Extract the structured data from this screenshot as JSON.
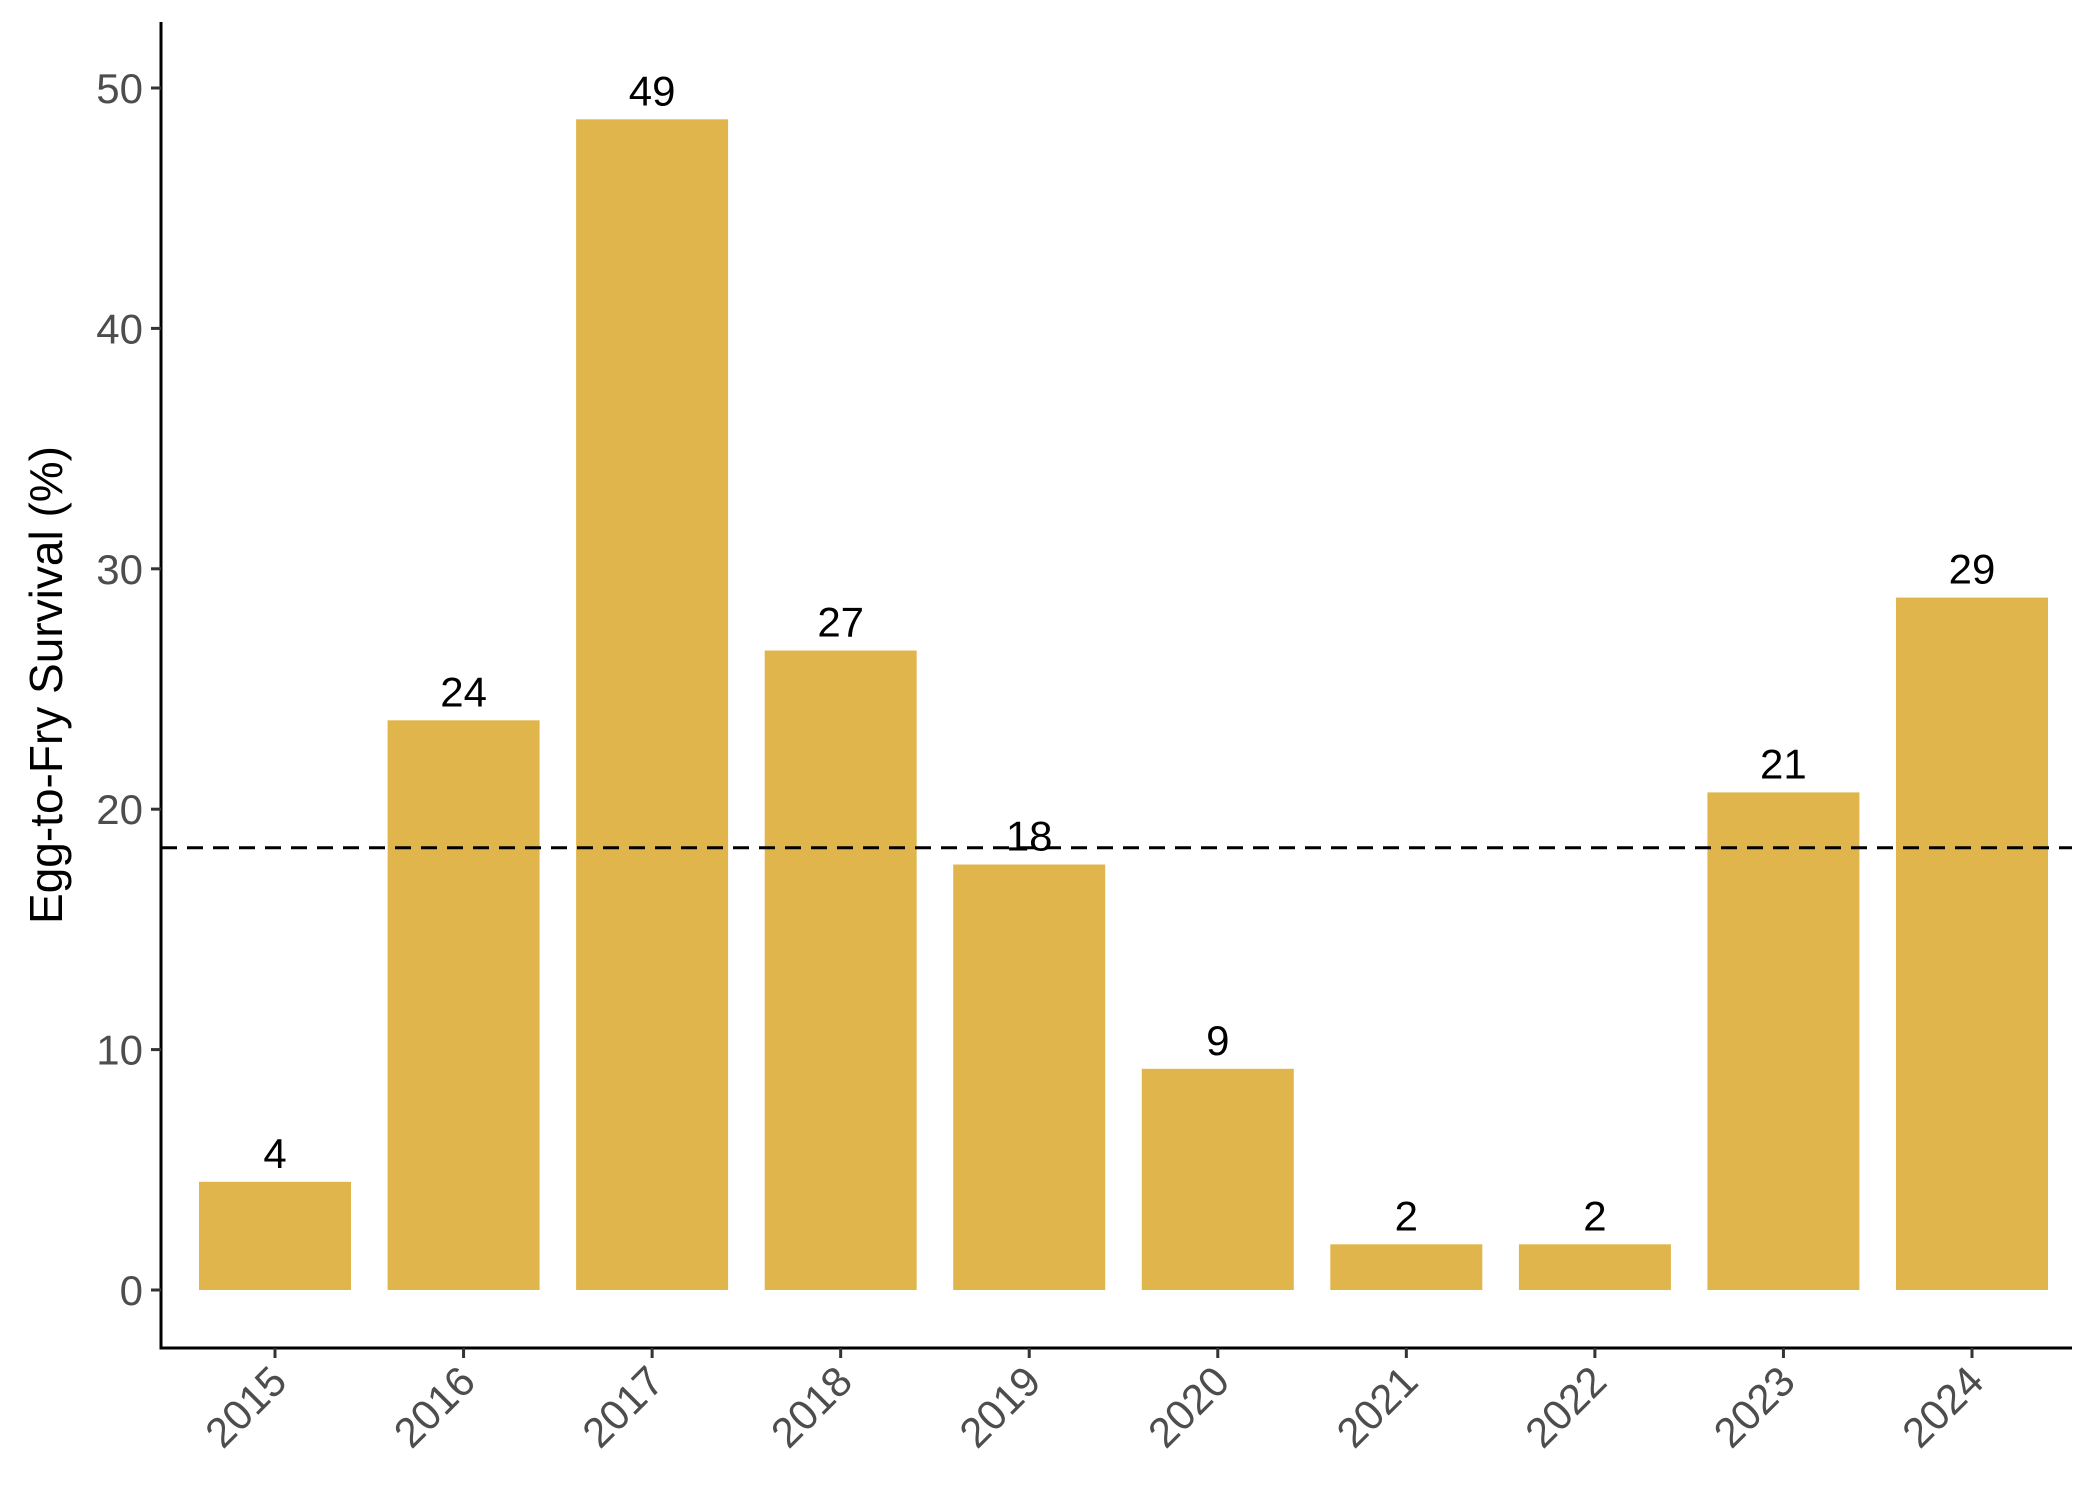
{
  "chart_data": {
    "type": "bar",
    "title": "",
    "xlabel": "",
    "ylabel": "Egg-to-Fry Survival (%)",
    "categories": [
      "2015",
      "2016",
      "2017",
      "2018",
      "2019",
      "2020",
      "2021",
      "2022",
      "2023",
      "2024"
    ],
    "values": [
      4.5,
      23.7,
      48.7,
      26.6,
      17.7,
      9.2,
      1.9,
      1.9,
      20.7,
      28.8
    ],
    "data_labels": [
      "4",
      "24",
      "49",
      "27",
      "18",
      "9",
      "2",
      "2",
      "21",
      "29"
    ],
    "yticks": [
      0,
      10,
      20,
      30,
      40,
      50
    ],
    "ytick_labels": [
      "0",
      "10",
      "20",
      "30",
      "40",
      "50"
    ],
    "ylim": [
      -2.5,
      53
    ],
    "grid": false,
    "legend": "none",
    "bar_color": "#E0B64C",
    "reference_line": {
      "value": 18.4,
      "style": "dashed",
      "color": "#000000"
    }
  }
}
